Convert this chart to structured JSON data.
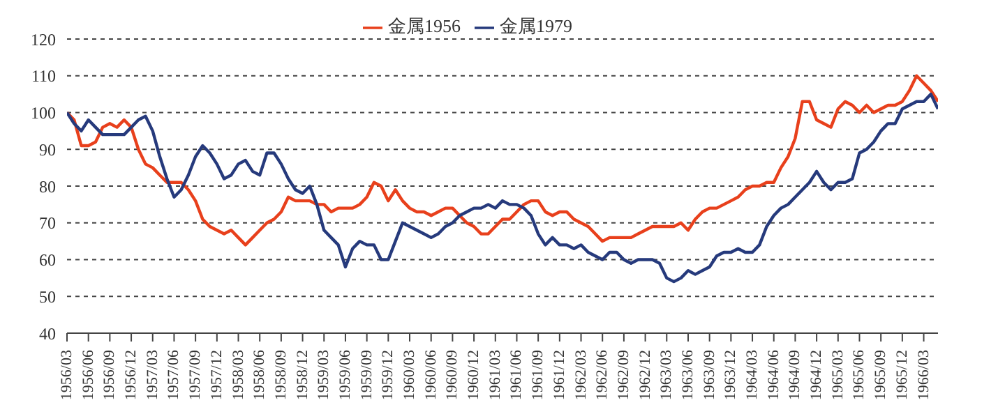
{
  "chart_data": {
    "type": "line",
    "categories": [
      "1956/03",
      null,
      null,
      "1956/06",
      null,
      null,
      "1956/09",
      null,
      null,
      "1956/12",
      null,
      null,
      "1957/03",
      null,
      null,
      "1957/06",
      null,
      null,
      "1957/09",
      null,
      null,
      "1957/12",
      null,
      null,
      "1958/03",
      null,
      null,
      "1958/06",
      null,
      null,
      "1958/09",
      null,
      null,
      "1958/12",
      null,
      null,
      "1959/03",
      null,
      null,
      "1959/06",
      null,
      null,
      "1959/09",
      null,
      null,
      "1959/12",
      null,
      null,
      "1960/03",
      null,
      null,
      "1960/06",
      null,
      null,
      "1960/09",
      null,
      null,
      "1960/12",
      null,
      null,
      "1961/03",
      null,
      null,
      "1961/06",
      null,
      null,
      "1961/09",
      null,
      null,
      "1961/12",
      null,
      null,
      "1962/03",
      null,
      null,
      "1962/06",
      null,
      null,
      "1962/09",
      null,
      null,
      "1962/12",
      null,
      null,
      "1963/03",
      null,
      null,
      "1963/06",
      null,
      null,
      "1963/09",
      null,
      null,
      "1963/12",
      null,
      null,
      "1964/03",
      null,
      null,
      "1964/06",
      null,
      null,
      "1964/09",
      null,
      null,
      "1964/12",
      null,
      null,
      "1965/03",
      null,
      null,
      "1965/06",
      null,
      null,
      "1965/09",
      null,
      null,
      "1965/12",
      null,
      null,
      "1966/03",
      null,
      null
    ],
    "series": [
      {
        "name": "金属1956",
        "color": "#e8401c",
        "values": [
          100,
          98,
          91,
          91,
          92,
          96,
          97,
          96,
          98,
          96,
          90,
          86,
          85,
          83,
          81,
          81,
          81,
          79,
          76,
          71,
          69,
          68,
          67,
          68,
          66,
          64,
          66,
          68,
          70,
          71,
          73,
          77,
          76,
          76,
          76,
          75,
          75,
          73,
          74,
          74,
          74,
          75,
          77,
          81,
          80,
          76,
          79,
          76,
          74,
          73,
          73,
          72,
          73,
          74,
          74,
          72,
          70,
          69,
          67,
          67,
          69,
          71,
          71,
          73,
          75,
          76,
          76,
          73,
          72,
          73,
          73,
          71,
          70,
          69,
          67,
          65,
          66,
          66,
          66,
          66,
          67,
          68,
          69,
          69,
          69,
          69,
          70,
          68,
          71,
          73,
          74,
          74,
          75,
          76,
          77,
          79,
          80,
          80,
          81,
          81,
          85,
          88,
          93,
          103,
          103,
          98,
          97,
          96,
          101,
          103,
          102,
          100,
          102,
          100,
          101,
          102,
          102,
          103,
          106,
          110,
          108,
          106,
          103
        ]
      },
      {
        "name": "金属1979",
        "color": "#263a7c",
        "values": [
          100,
          97,
          95,
          98,
          96,
          94,
          94,
          94,
          94,
          96,
          98,
          99,
          95,
          88,
          82,
          77,
          79,
          83,
          88,
          91,
          89,
          86,
          82,
          83,
          86,
          87,
          84,
          83,
          89,
          89,
          86,
          82,
          79,
          78,
          80,
          75,
          68,
          66,
          64,
          58,
          63,
          65,
          64,
          64,
          60,
          60,
          65,
          70,
          69,
          68,
          67,
          66,
          67,
          69,
          70,
          72,
          73,
          74,
          74,
          75,
          74,
          76,
          75,
          75,
          74,
          72,
          67,
          64,
          66,
          64,
          64,
          63,
          64,
          62,
          61,
          60,
          62,
          62,
          60,
          59,
          60,
          60,
          60,
          59,
          55,
          54,
          55,
          57,
          56,
          57,
          58,
          61,
          62,
          62,
          63,
          62,
          62,
          64,
          69,
          72,
          74,
          75,
          77,
          79,
          81,
          84,
          81,
          79,
          81,
          81,
          82,
          89,
          90,
          92,
          95,
          97,
          97,
          101,
          102,
          103,
          103,
          105,
          101
        ]
      }
    ],
    "ylim": [
      40,
      120
    ],
    "yticks": [
      40,
      50,
      60,
      70,
      80,
      90,
      100,
      110,
      120
    ],
    "grid": "y",
    "legend": "top",
    "line_style": "solid",
    "marker": "none"
  }
}
